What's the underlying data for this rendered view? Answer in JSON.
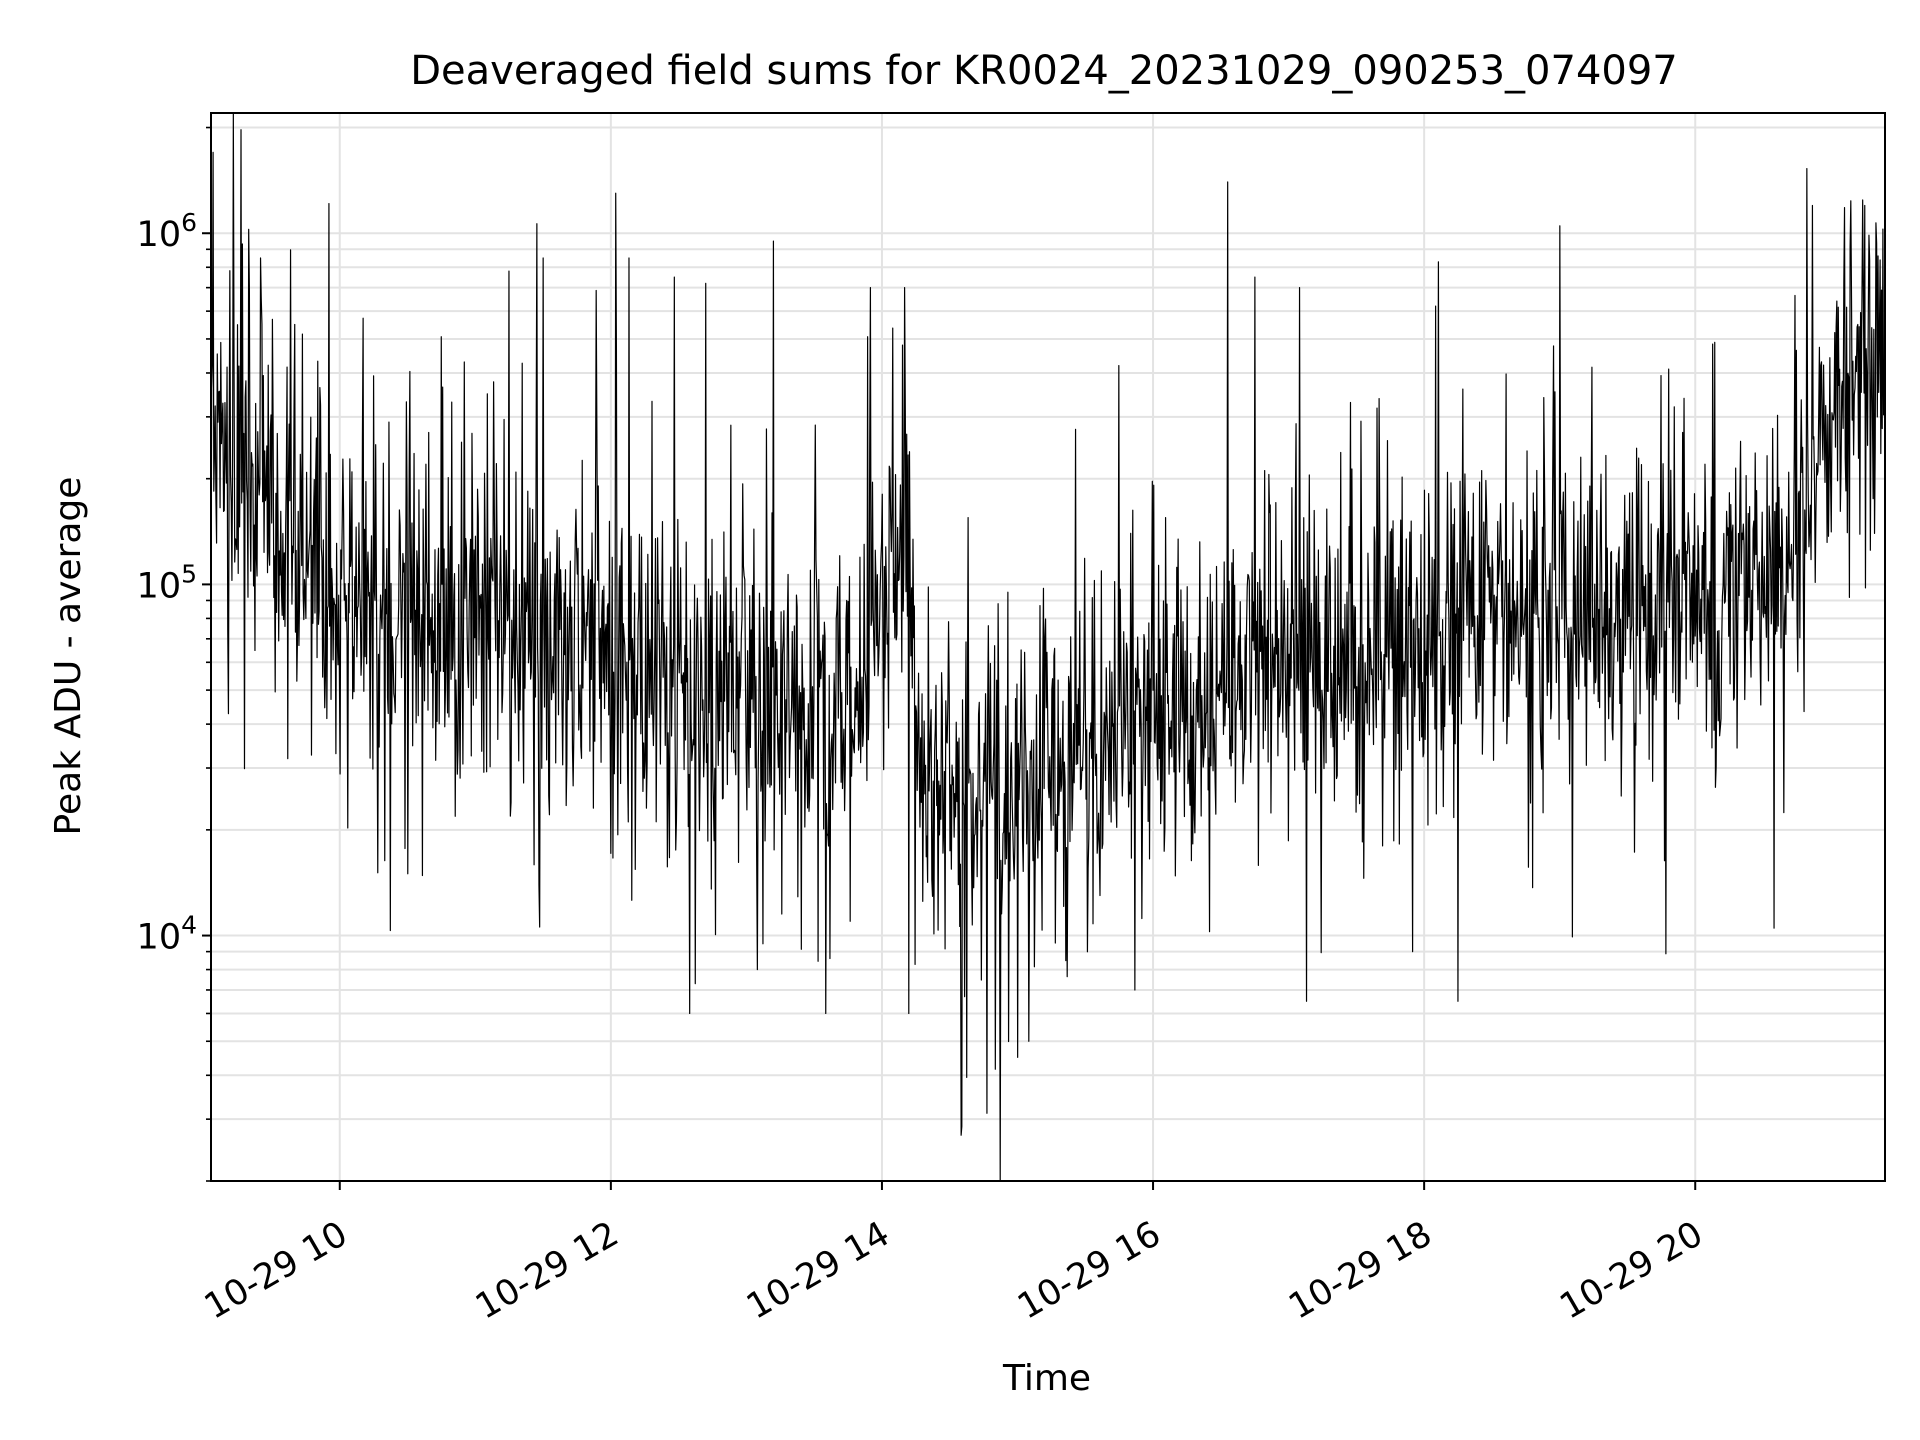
{
  "chart_data": {
    "type": "line",
    "title": "Deaveraged field sums for KR0024_20231029_090253_074097",
    "xlabel": "Time",
    "ylabel": "Peak ADU - average",
    "xscale": "time",
    "yscale": "log",
    "xlim": [
      "2023-10-29 09:03",
      "2023-10-29 21:24"
    ],
    "ylim": [
      2000,
      2200000
    ],
    "grid": true,
    "line_color": "#000000",
    "x_ticks": [
      {
        "value": "2023-10-29 10:00",
        "label": "10-29 10"
      },
      {
        "value": "2023-10-29 12:00",
        "label": "10-29 12"
      },
      {
        "value": "2023-10-29 14:00",
        "label": "10-29 14"
      },
      {
        "value": "2023-10-29 16:00",
        "label": "10-29 16"
      },
      {
        "value": "2023-10-29 18:00",
        "label": "10-29 18"
      },
      {
        "value": "2023-10-29 20:00",
        "label": "10-29 20"
      }
    ],
    "y_ticks": [
      {
        "value": 10000,
        "base": "10",
        "exp": "4"
      },
      {
        "value": 100000,
        "base": "10",
        "exp": "5"
      },
      {
        "value": 1000000,
        "base": "10",
        "exp": "6"
      }
    ],
    "series": [
      {
        "x": [
          "2023-10-29 09:03",
          "2023-10-29 09:15",
          "2023-10-29 09:30",
          "2023-10-29 09:45",
          "2023-10-29 10:00",
          "2023-10-29 10:15",
          "2023-10-29 10:30",
          "2023-10-29 10:45",
          "2023-10-29 11:00",
          "2023-10-29 11:15",
          "2023-10-29 11:30",
          "2023-10-29 11:45",
          "2023-10-29 12:00",
          "2023-10-29 12:15",
          "2023-10-29 12:30",
          "2023-10-29 12:45",
          "2023-10-29 13:00",
          "2023-10-29 13:15",
          "2023-10-29 13:30",
          "2023-10-29 13:45",
          "2023-10-29 14:00",
          "2023-10-29 14:10",
          "2023-10-29 14:20",
          "2023-10-29 14:35",
          "2023-10-29 14:50",
          "2023-10-29 15:05",
          "2023-10-29 15:20",
          "2023-10-29 15:35",
          "2023-10-29 15:50",
          "2023-10-29 16:00",
          "2023-10-29 16:15",
          "2023-10-29 16:30",
          "2023-10-29 16:45",
          "2023-10-29 17:00",
          "2023-10-29 17:15",
          "2023-10-29 17:30",
          "2023-10-29 17:45",
          "2023-10-29 18:00",
          "2023-10-29 18:15",
          "2023-10-29 18:30",
          "2023-10-29 18:45",
          "2023-10-29 19:00",
          "2023-10-29 19:15",
          "2023-10-29 19:30",
          "2023-10-29 19:45",
          "2023-10-29 20:00",
          "2023-10-29 20:15",
          "2023-10-29 20:30",
          "2023-10-29 20:45",
          "2023-10-29 21:00",
          "2023-10-29 21:15",
          "2023-10-29 21:24"
        ],
        "y": [
          220000,
          190000,
          150000,
          120000,
          100000,
          90000,
          85000,
          82000,
          80000,
          75000,
          70000,
          65000,
          60000,
          55000,
          50000,
          50000,
          50000,
          45000,
          40000,
          40000,
          90000,
          150000,
          25000,
          25000,
          25000,
          30000,
          30000,
          35000,
          40000,
          50000,
          50000,
          55000,
          60000,
          60000,
          60000,
          60000,
          65000,
          70000,
          75000,
          80000,
          80000,
          80000,
          85000,
          85000,
          90000,
          90000,
          100000,
          110000,
          130000,
          300000,
          400000,
          450000
        ]
      }
    ],
    "noise_sigma_decades": 0.22,
    "spike_peaks": [
      {
        "x": "2023-10-29 09:04",
        "y": 1700000
      },
      {
        "x": "2023-10-29 09:20",
        "y": 700000
      },
      {
        "x": "2023-10-29 09:25",
        "y": 850000
      },
      {
        "x": "2023-10-29 09:40",
        "y": 550000
      },
      {
        "x": "2023-10-29 10:55",
        "y": 430000
      },
      {
        "x": "2023-10-29 11:15",
        "y": 780000
      },
      {
        "x": "2023-10-29 11:30",
        "y": 850000
      },
      {
        "x": "2023-10-29 12:02",
        "y": 1300000
      },
      {
        "x": "2023-10-29 12:08",
        "y": 850000
      },
      {
        "x": "2023-10-29 12:28",
        "y": 750000
      },
      {
        "x": "2023-10-29 12:42",
        "y": 720000
      },
      {
        "x": "2023-10-29 13:12",
        "y": 950000
      },
      {
        "x": "2023-10-29 13:35",
        "y": 720000
      },
      {
        "x": "2023-10-29 13:55",
        "y": 700000
      },
      {
        "x": "2023-10-29 14:10",
        "y": 700000
      },
      {
        "x": "2023-10-29 15:45",
        "y": 420000
      },
      {
        "x": "2023-10-29 16:33",
        "y": 1400000
      },
      {
        "x": "2023-10-29 16:45",
        "y": 750000
      },
      {
        "x": "2023-10-29 17:05",
        "y": 700000
      },
      {
        "x": "2023-10-29 18:05",
        "y": 620000
      },
      {
        "x": "2023-10-29 19:00",
        "y": 1050000
      },
      {
        "x": "2023-10-29 20:52",
        "y": 1200000
      },
      {
        "x": "2023-10-29 21:15",
        "y": 1200000
      }
    ],
    "dip_troughs": [
      {
        "x": "2023-10-29 10:30",
        "y": 15000
      },
      {
        "x": "2023-10-29 12:35",
        "y": 6000
      },
      {
        "x": "2023-10-29 13:05",
        "y": 8000
      },
      {
        "x": "2023-10-29 13:35",
        "y": 6000
      },
      {
        "x": "2023-10-29 14:12",
        "y": 6000
      },
      {
        "x": "2023-10-29 14:35",
        "y": 2700
      },
      {
        "x": "2023-10-29 15:00",
        "y": 4500
      },
      {
        "x": "2023-10-29 15:05",
        "y": 5000
      },
      {
        "x": "2023-10-29 15:52",
        "y": 7000
      },
      {
        "x": "2023-10-29 17:08",
        "y": 6500
      },
      {
        "x": "2023-10-29 17:55",
        "y": 9000
      },
      {
        "x": "2023-10-29 18:15",
        "y": 6500
      },
      {
        "x": "2023-10-29 20:35",
        "y": 10500
      }
    ]
  }
}
